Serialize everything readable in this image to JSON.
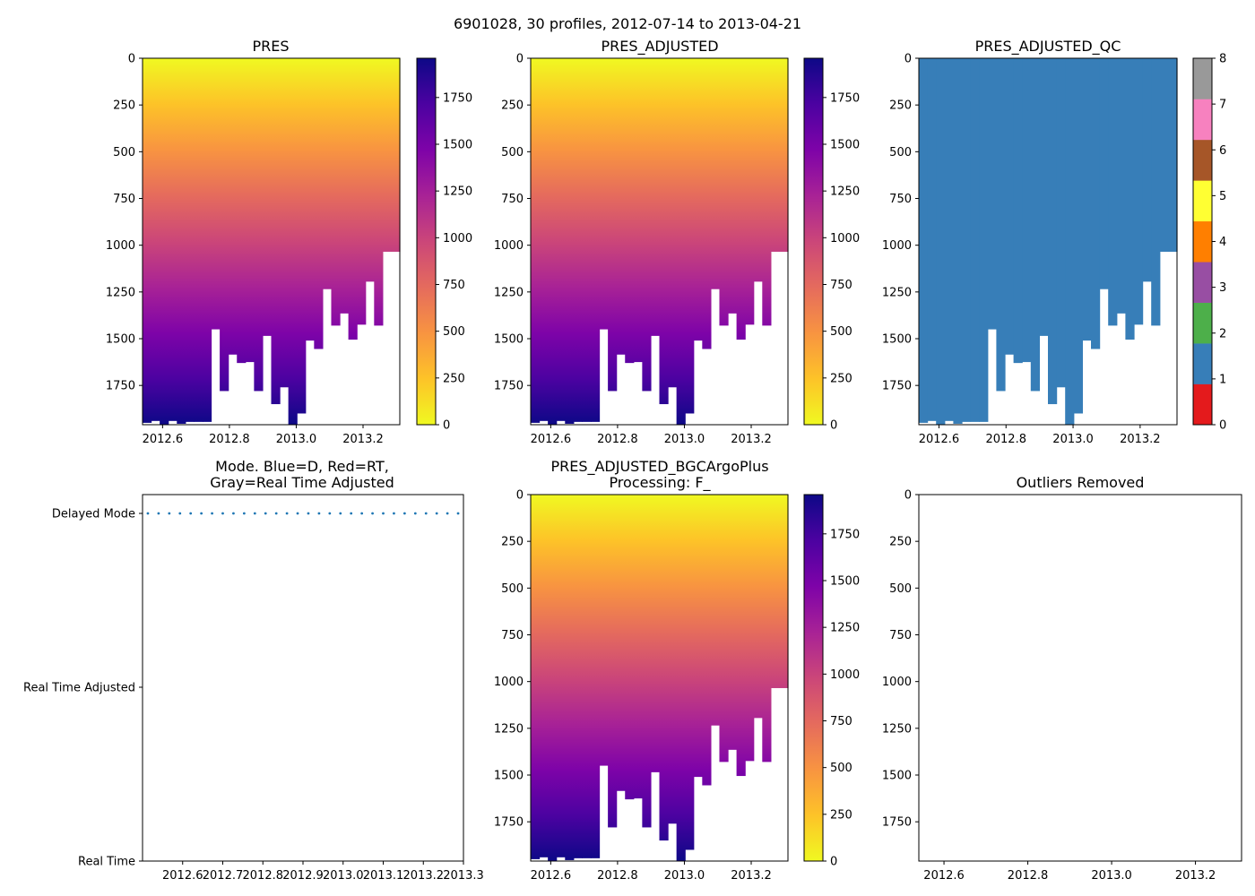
{
  "suptitle": "6901028, 30 profiles, 2012-07-14 to 2013-04-21",
  "colors": {
    "qc_blue": "#377eb8",
    "mode_dot": "#1f77b4",
    "qc_colorbar": [
      "#e41a1c",
      "#377eb8",
      "#4daf4a",
      "#984ea3",
      "#ff7f00",
      "#ffff33",
      "#a65628",
      "#f781bf",
      "#999999"
    ]
  },
  "chart_data": [
    {
      "id": "pres",
      "type": "heatmap",
      "title": "PRES",
      "xlim": [
        2012.54,
        2013.31
      ],
      "ylim": [
        1960,
        0
      ],
      "x_ticks": [
        "2012.6",
        "2012.8",
        "2013.0",
        "2013.2"
      ],
      "x_tick_values": [
        2012.6,
        2012.8,
        2013.0,
        2013.2
      ],
      "y_ticks": [
        "0",
        "250",
        "500",
        "750",
        "1000",
        "1250",
        "1500",
        "1750"
      ],
      "y_tick_values": [
        0,
        250,
        500,
        750,
        1000,
        1250,
        1500,
        1750
      ],
      "colormap": "plasma_r",
      "colorbar_ticks": [
        "0",
        "250",
        "500",
        "750",
        "1000",
        "1250",
        "1500",
        "1750"
      ],
      "colorbar_tick_values": [
        0,
        250,
        500,
        750,
        1000,
        1250,
        1500,
        1750
      ],
      "colorbar_range": [
        0,
        1960
      ]
    },
    {
      "id": "pres_adj",
      "type": "heatmap",
      "title": "PRES_ADJUSTED",
      "xlim": [
        2012.54,
        2013.31
      ],
      "ylim": [
        1960,
        0
      ],
      "x_ticks": [
        "2012.6",
        "2012.8",
        "2013.0",
        "2013.2"
      ],
      "x_tick_values": [
        2012.6,
        2012.8,
        2013.0,
        2013.2
      ],
      "y_ticks": [
        "0",
        "250",
        "500",
        "750",
        "1000",
        "1250",
        "1500",
        "1750"
      ],
      "y_tick_values": [
        0,
        250,
        500,
        750,
        1000,
        1250,
        1500,
        1750
      ],
      "colormap": "plasma_r",
      "colorbar_ticks": [
        "0",
        "250",
        "500",
        "750",
        "1000",
        "1250",
        "1500",
        "1750"
      ],
      "colorbar_tick_values": [
        0,
        250,
        500,
        750,
        1000,
        1250,
        1500,
        1750
      ],
      "colorbar_range": [
        0,
        1960
      ]
    },
    {
      "id": "pres_adj_qc",
      "type": "heatmap",
      "title": "PRES_ADJUSTED_QC",
      "xlim": [
        2012.54,
        2013.31
      ],
      "ylim": [
        1960,
        0
      ],
      "x_ticks": [
        "2012.6",
        "2012.8",
        "2013.0",
        "2013.2"
      ],
      "x_tick_values": [
        2012.6,
        2012.8,
        2013.0,
        2013.2
      ],
      "y_ticks": [
        "0",
        "250",
        "500",
        "750",
        "1000",
        "1250",
        "1500",
        "1750"
      ],
      "y_tick_values": [
        0,
        250,
        500,
        750,
        1000,
        1250,
        1500,
        1750
      ],
      "qc_value": 1,
      "colorbar_ticks": [
        "0",
        "1",
        "2",
        "3",
        "4",
        "5",
        "6",
        "7",
        "8"
      ],
      "colorbar_tick_values": [
        0,
        1,
        2,
        3,
        4,
        5,
        6,
        7,
        8
      ],
      "colorbar_range": [
        0,
        8
      ]
    },
    {
      "id": "mode",
      "type": "scatter",
      "title_line1": "Mode. Blue=D, Red=RT,",
      "title_line2": "Gray=Real Time Adjusted",
      "xlim": [
        2012.5,
        2013.3
      ],
      "x_ticks": [
        "2012.6",
        "2012.7",
        "2012.8",
        "2012.9",
        "2013.0",
        "2013.1",
        "2013.2",
        "2013.3"
      ],
      "x_tick_values": [
        2012.6,
        2012.7,
        2012.8,
        2012.9,
        2013.0,
        2013.1,
        2013.2,
        2013.3
      ],
      "y_categories": [
        "Real Time",
        "Real Time Adjusted",
        "Delayed Mode"
      ],
      "mode_value": "Delayed Mode",
      "n_points": 30
    },
    {
      "id": "bgc",
      "type": "heatmap",
      "title_line1": "PRES_ADJUSTED_BGCArgoPlus",
      "title_line2": "Processing: F_",
      "xlim": [
        2012.54,
        2013.31
      ],
      "ylim": [
        1960,
        0
      ],
      "x_ticks": [
        "2012.6",
        "2012.8",
        "2013.0",
        "2013.2"
      ],
      "x_tick_values": [
        2012.6,
        2012.8,
        2013.0,
        2013.2
      ],
      "y_ticks": [
        "0",
        "250",
        "500",
        "750",
        "1000",
        "1250",
        "1500",
        "1750"
      ],
      "y_tick_values": [
        0,
        250,
        500,
        750,
        1000,
        1250,
        1500,
        1750
      ],
      "colormap": "plasma_r",
      "colorbar_ticks": [
        "0",
        "250",
        "500",
        "750",
        "1000",
        "1250",
        "1500",
        "1750"
      ],
      "colorbar_tick_values": [
        0,
        250,
        500,
        750,
        1000,
        1250,
        1500,
        1750
      ],
      "colorbar_range": [
        0,
        1960
      ]
    },
    {
      "id": "outliers",
      "type": "scatter",
      "title": "Outliers Removed",
      "xlim": [
        2012.54,
        2013.31
      ],
      "ylim": [
        1960,
        0
      ],
      "x_ticks": [
        "2012.6",
        "2012.8",
        "2013.0",
        "2013.2"
      ],
      "x_tick_values": [
        2012.6,
        2012.8,
        2013.0,
        2013.2
      ],
      "y_ticks": [
        "0",
        "250",
        "500",
        "750",
        "1000",
        "1250",
        "1500",
        "1750"
      ],
      "y_tick_values": [
        0,
        250,
        500,
        750,
        1000,
        1250,
        1500,
        1750
      ]
    }
  ],
  "profiles": {
    "count": 30,
    "max_depth": [
      1950,
      1940,
      1960,
      1940,
      1955,
      1945,
      1945,
      1945,
      1450,
      1780,
      1585,
      1630,
      1625,
      1780,
      1485,
      1850,
      1760,
      1960,
      1900,
      1510,
      1555,
      1235,
      1430,
      1365,
      1505,
      1425,
      1195,
      1430,
      1035,
      1035
    ]
  }
}
